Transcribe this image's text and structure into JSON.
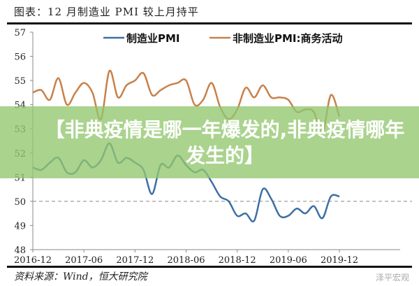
{
  "header": {
    "title": "图表：12 月制造业 PMI 较上月持平"
  },
  "footer": {
    "source": "资料来源：Wind，恒大研究院",
    "watermark": "泽平宏观"
  },
  "banner": {
    "text": "【非典疫情是哪一年爆发的,非典疫情哪年发生的】"
  },
  "chart_data": {
    "type": "line",
    "title": "",
    "xlabel": "",
    "ylabel": "",
    "ylim": [
      48,
      57
    ],
    "yticks": [
      "48",
      "49",
      "50",
      "51",
      "52",
      "53",
      "54",
      "55",
      "56",
      "57"
    ],
    "xticks": [
      "2016-12",
      "2017-06",
      "2017-12",
      "2018-06",
      "2018-12",
      "2019-06",
      "2019-12"
    ],
    "x_start": "2016-12",
    "x_end": "2019-12",
    "reference_line": 50,
    "legend_position": "top",
    "series": [
      {
        "name": "制造业PMI",
        "color": "#3d6fa3",
        "values": [
          51.4,
          51.3,
          51.6,
          51.8,
          51.2,
          51.2,
          51.7,
          51.4,
          51.7,
          52.4,
          51.6,
          51.8,
          51.6,
          51.3,
          50.3,
          51.5,
          51.4,
          51.9,
          51.5,
          51.2,
          51.3,
          50.8,
          50.2,
          50.0,
          49.4,
          49.5,
          49.2,
          50.5,
          50.1,
          49.4,
          49.4,
          49.7,
          49.5,
          49.8,
          49.3,
          50.2,
          50.2
        ]
      },
      {
        "name": "非制造业PMI:商务活动",
        "color": "#c8814a",
        "values": [
          54.5,
          54.6,
          54.2,
          55.1,
          54.0,
          54.5,
          54.9,
          54.5,
          53.4,
          55.4,
          54.3,
          54.8,
          55.0,
          55.3,
          54.4,
          54.6,
          54.8,
          54.9,
          55.0,
          54.0,
          54.2,
          54.9,
          53.9,
          53.4,
          53.8,
          54.7,
          54.3,
          54.8,
          54.3,
          54.3,
          54.2,
          53.7,
          53.8,
          53.7,
          52.8,
          54.4,
          53.5
        ]
      }
    ]
  }
}
